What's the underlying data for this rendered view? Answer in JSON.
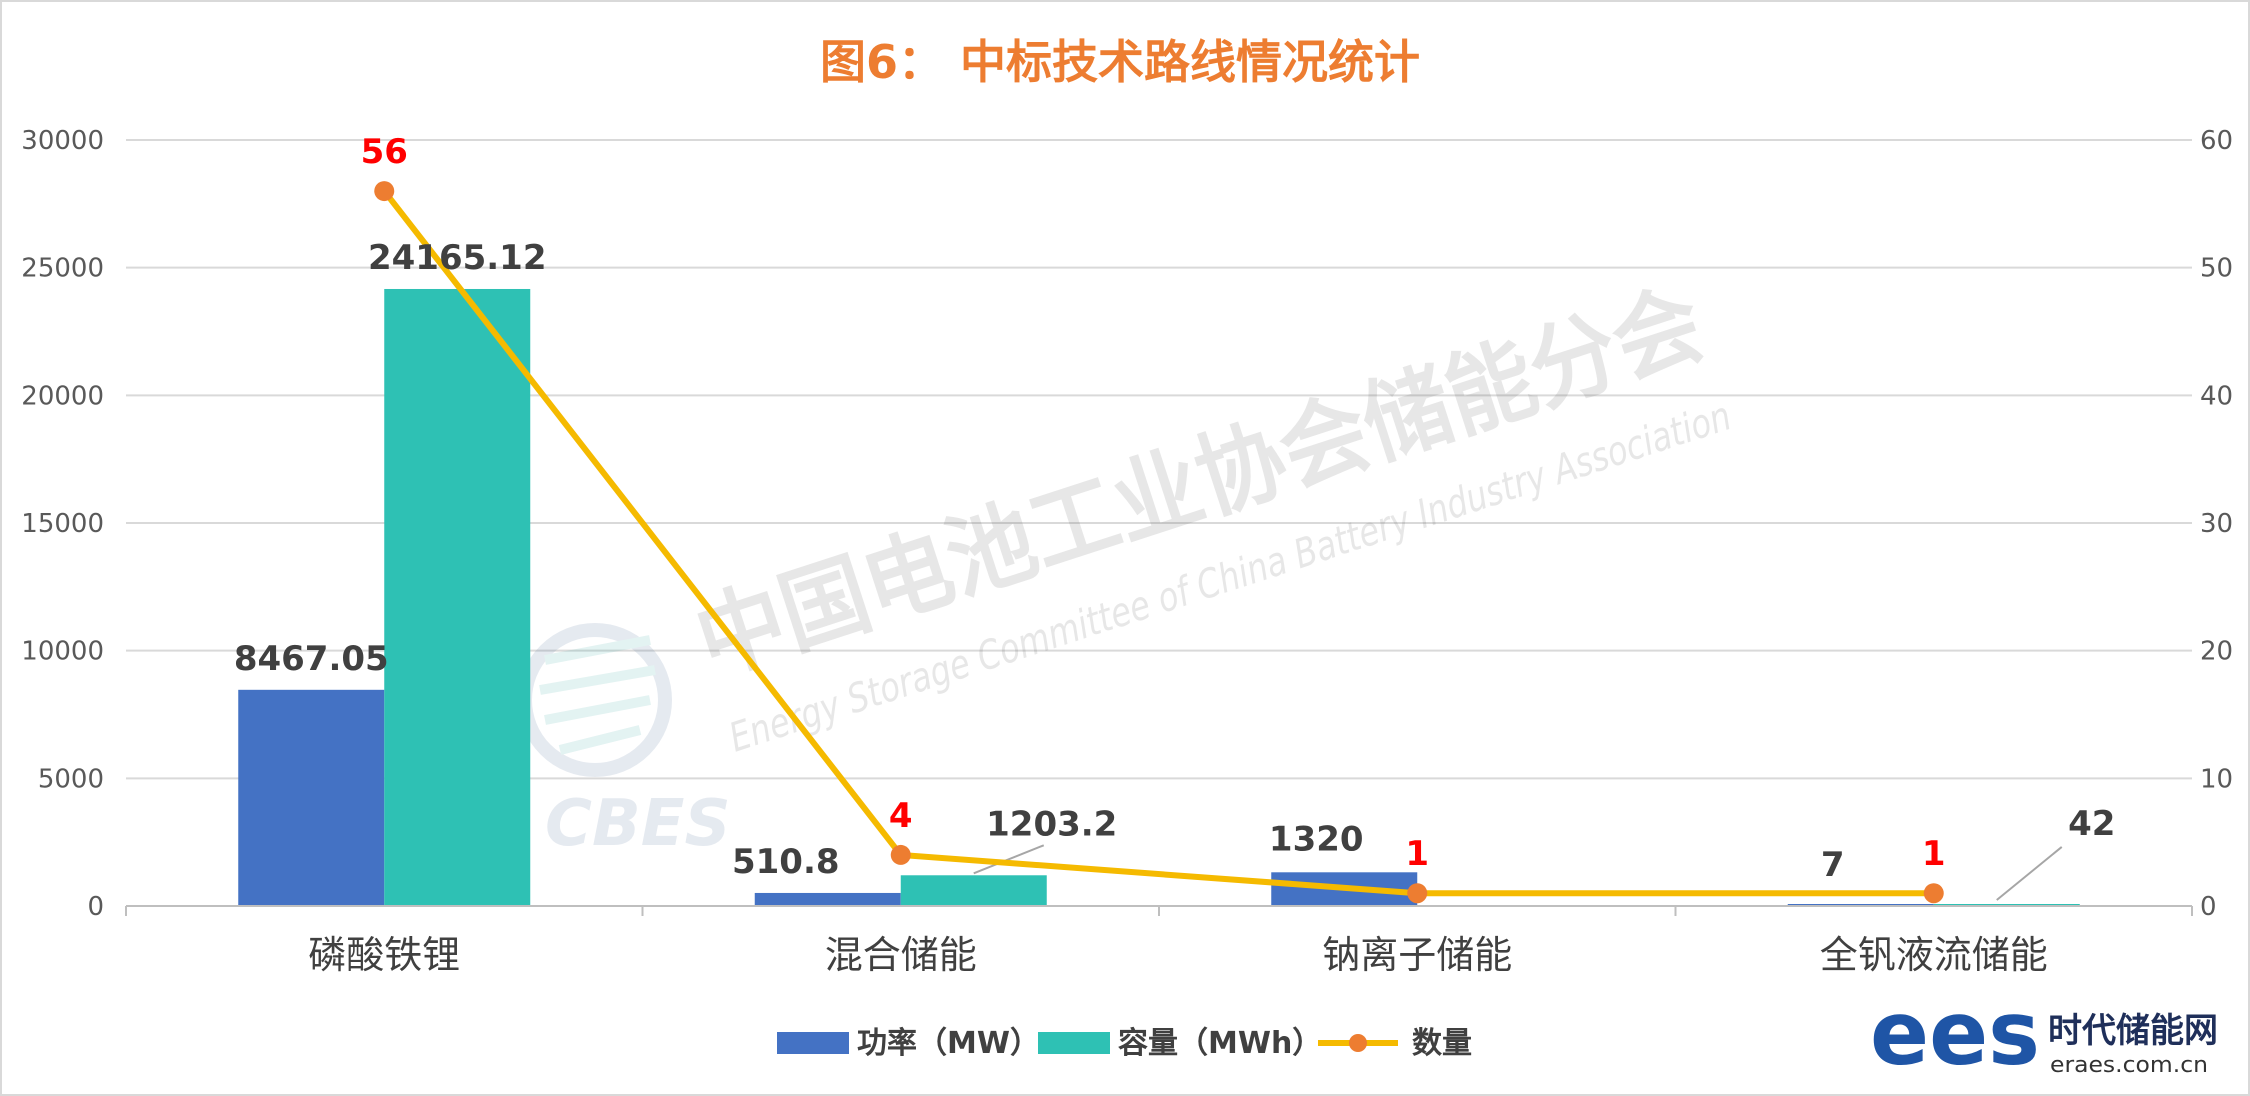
{
  "chart_data": {
    "type": "bar",
    "title": "图6： 中标技术路线情况统计",
    "categories": [
      "磷酸铁锂",
      "混合储能",
      "钠离子储能",
      "全钒液流储能"
    ],
    "series": [
      {
        "name": "功率（MW）",
        "kind": "bar",
        "axis": "left",
        "color": "#4472C4",
        "values": [
          8467.05,
          510.8,
          1320,
          7
        ],
        "labels": [
          "8467.05",
          "510.8",
          "1320",
          "7"
        ]
      },
      {
        "name": "容量（MWh）",
        "kind": "bar",
        "axis": "left",
        "color": "#2EC1B4",
        "values": [
          24165.12,
          1203.2,
          0,
          42
        ],
        "labels": [
          "24165.12",
          "1203.2",
          "",
          "42"
        ]
      },
      {
        "name": "数量",
        "kind": "line",
        "axis": "right",
        "color": "#F5BA00",
        "marker_color": "#ED7D31",
        "values": [
          56,
          4,
          1,
          1
        ],
        "labels": [
          "56",
          "4",
          "1",
          "1"
        ],
        "label_color": "#FF0000"
      }
    ],
    "y_left": {
      "ylim": [
        0,
        30000
      ],
      "ticks": [
        "0",
        "5000",
        "10000",
        "15000",
        "20000",
        "25000",
        "30000"
      ]
    },
    "y_right": {
      "ylim": [
        0,
        60
      ],
      "ticks": [
        "0",
        "10",
        "20",
        "30",
        "40",
        "50",
        "60"
      ]
    },
    "grid": true,
    "legend_position": "bottom"
  },
  "colors": {
    "title": "#ED7D31",
    "axis_text": "#595959",
    "value_label": "#404040",
    "grid": "#D9D9D9"
  },
  "watermark": {
    "line1": "中国电池工业协会储能分会",
    "line2": "Energy Storage Committee of China Battery Industry Association",
    "logo_text": "CBES"
  },
  "brand": {
    "logo_text": "ees",
    "name": "时代储能网",
    "url": "eraes.com.cn"
  }
}
